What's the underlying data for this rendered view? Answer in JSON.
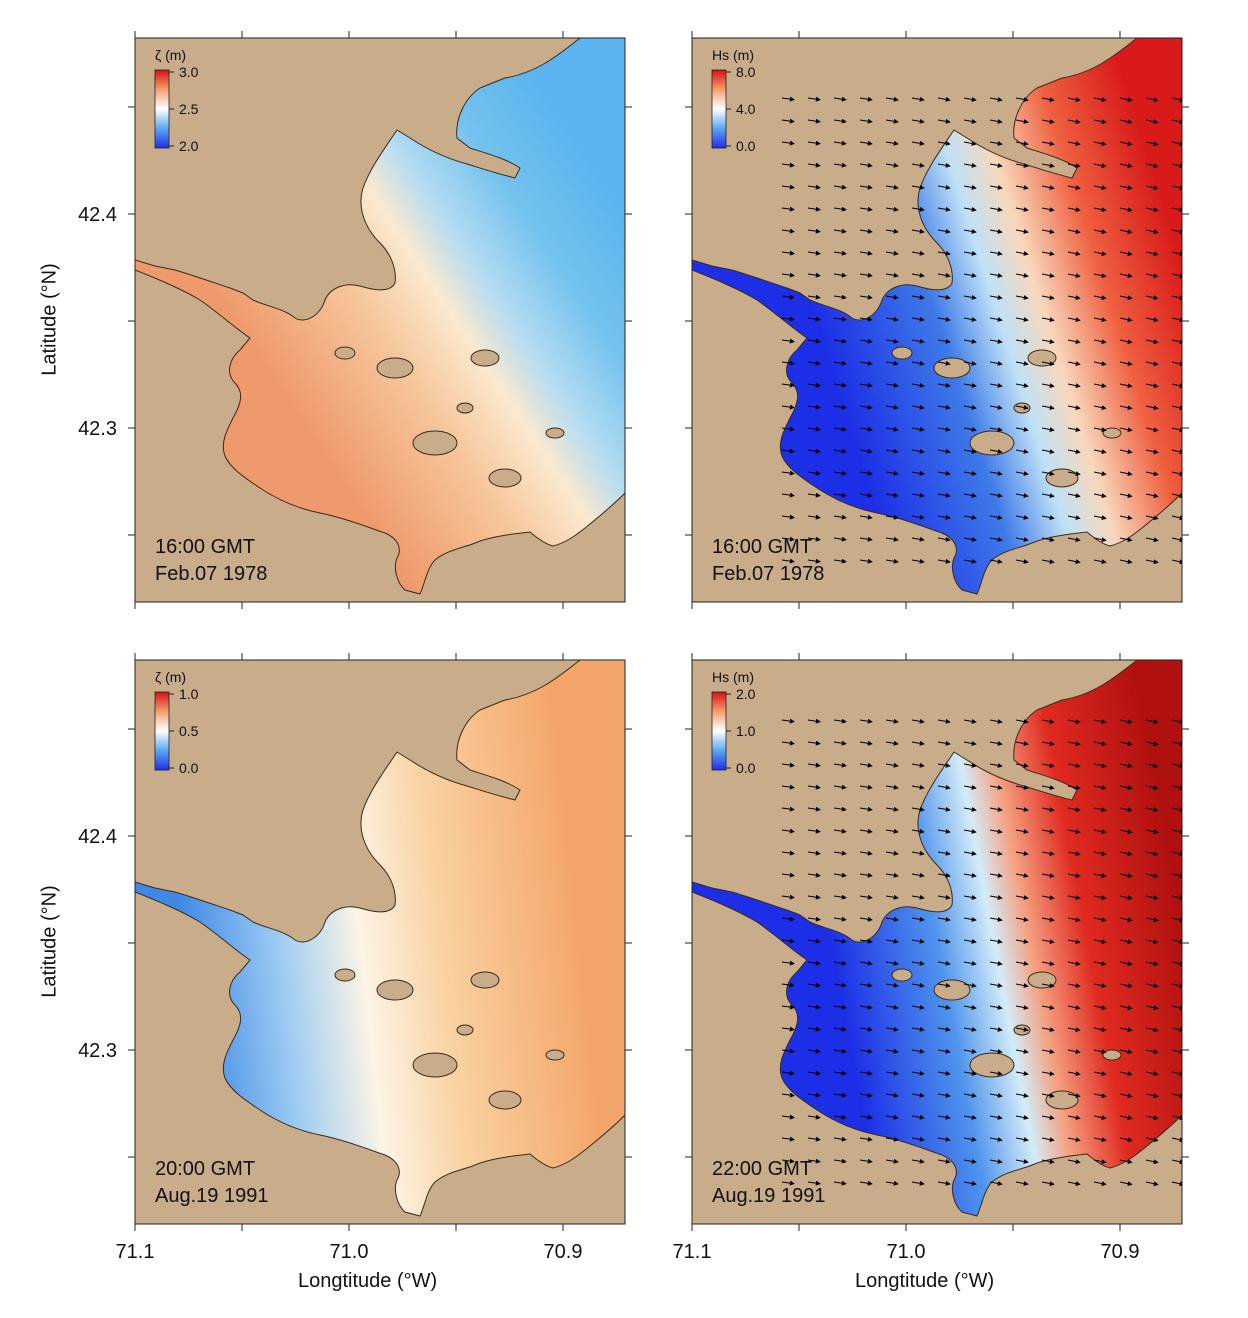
{
  "figure": {
    "y_axis_label": "Latitude (°N)",
    "x_axis_label": "Longtitude (°W)",
    "x_tick_labels": [
      "71.1",
      "71.0",
      "70.9"
    ],
    "y_tick_labels": [
      "42.4",
      "42.3"
    ],
    "land_color": "#c9ac8a",
    "wave_arrow_color": "#000000"
  },
  "panels": [
    {
      "id": "top-left",
      "variable": "ζ",
      "unit": "(m)",
      "colorbar_ticks": [
        "3.0",
        "2.5",
        "2.0"
      ],
      "time": "16:00 GMT",
      "date": "Feb.07 1978",
      "has_arrows": false
    },
    {
      "id": "top-right",
      "variable": "Hs",
      "unit": "(m)",
      "colorbar_ticks": [
        "8.0",
        "4.0",
        "0.0"
      ],
      "time": "16:00 GMT",
      "date": "Feb.07 1978",
      "has_arrows": true
    },
    {
      "id": "bottom-left",
      "variable": "ζ",
      "unit": "(m)",
      "colorbar_ticks": [
        "1.0",
        "0.5",
        "0.0"
      ],
      "time": "20:00 GMT",
      "date": "Aug.19 1991",
      "has_arrows": false
    },
    {
      "id": "bottom-right",
      "variable": "Hs",
      "unit": "(m)",
      "colorbar_ticks": [
        "2.0",
        "1.0",
        "0.0"
      ],
      "time": "22:00 GMT",
      "date": "Aug.19 1991",
      "has_arrows": true
    }
  ],
  "colormap": [
    "#1f2ee8",
    "#5aa8f0",
    "#ffffff",
    "#f2a070",
    "#d81010"
  ]
}
